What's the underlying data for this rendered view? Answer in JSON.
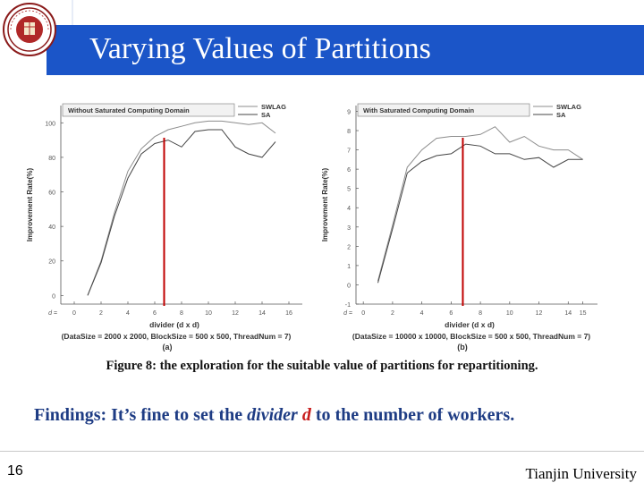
{
  "slide": {
    "title": "Varying Values of Partitions",
    "page_number": "16",
    "university": "Tianjin University",
    "logo_text": "天津大学"
  },
  "caption": "Figure 8: the exploration for the suitable value of partitions for repartitioning.",
  "findings": {
    "prefix": "Findings: It’s fine to set the ",
    "divider_word": "divider",
    "var": "d",
    "suffix": " to  the number of workers."
  },
  "chart_data": [
    {
      "type": "line",
      "panel_label": "(a)",
      "legend_title": "Without Saturated Computing Domain",
      "xlabel": "divider (d x d)",
      "x_prefix": "d =",
      "ylabel": "Improvement Rate(%)",
      "params": "(DataSize = 2000 x 2000, BlockSize = 500 x 500, ThreadNum = 7)",
      "xlim": [
        -1,
        17
      ],
      "ylim": [
        -5,
        110
      ],
      "xticks": [
        0,
        2,
        4,
        6,
        8,
        10,
        12,
        14,
        16
      ],
      "yticks": [
        0,
        20,
        40,
        60,
        80,
        100
      ],
      "marker_x": 6.7,
      "x": [
        1,
        2,
        3,
        4,
        5,
        6,
        7,
        8,
        9,
        10,
        11,
        12,
        13,
        14,
        15
      ],
      "series": [
        {
          "name": "SWLAG",
          "values": [
            0,
            20,
            48,
            72,
            85,
            92,
            96,
            98,
            100,
            101,
            101,
            100,
            99,
            100,
            94
          ],
          "color": "#8c8c8c"
        },
        {
          "name": "SA",
          "values": [
            0,
            19,
            46,
            68,
            82,
            88,
            90,
            86,
            95,
            96,
            96,
            86,
            82,
            80,
            89
          ],
          "color": "#444444"
        }
      ]
    },
    {
      "type": "line",
      "panel_label": "(b)",
      "legend_title": "With Saturated Computing Domain",
      "xlabel": "divider (d x d)",
      "x_prefix": "d =",
      "ylabel": "Improvement Rate(%)",
      "params": "(DataSize = 10000 x 10000, BlockSize = 500 x 500, ThreadNum = 7)",
      "xlim": [
        -0.5,
        16
      ],
      "ylim": [
        -1,
        9.3
      ],
      "xticks": [
        0,
        2,
        4,
        6,
        8,
        10,
        12,
        14,
        15
      ],
      "yticks": [
        -1,
        0,
        1,
        2,
        3,
        4,
        5,
        6,
        7,
        8,
        9
      ],
      "marker_x": 6.8,
      "x": [
        1,
        2,
        3,
        4,
        5,
        6,
        7,
        8,
        9,
        10,
        11,
        12,
        13,
        14,
        15
      ],
      "series": [
        {
          "name": "SWLAG",
          "values": [
            0.2,
            3.1,
            6.1,
            7.0,
            7.6,
            7.7,
            7.7,
            7.8,
            8.2,
            7.4,
            7.7,
            7.2,
            7.0,
            7.0,
            6.5
          ],
          "color": "#8c8c8c"
        },
        {
          "name": "SA",
          "values": [
            0.1,
            2.9,
            5.8,
            6.4,
            6.7,
            6.8,
            7.3,
            7.2,
            6.8,
            6.8,
            6.5,
            6.6,
            6.1,
            6.5,
            6.5
          ],
          "color": "#444444"
        }
      ]
    }
  ]
}
